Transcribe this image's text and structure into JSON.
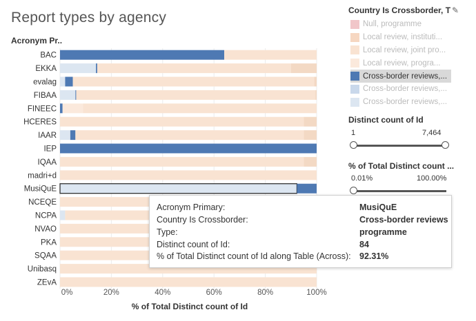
{
  "title": "Report types by agency",
  "row_header": "Acronym Pr..",
  "colors": {
    "blue": "#4e79b3",
    "light_blue": "#dce6f1",
    "beige": "#f9e3d2",
    "beige_dark": "#f3d9c4",
    "pink": "#f1c6c9"
  },
  "legend": {
    "title": "Country Is Crossborder, T",
    "edit_icon": "pencil-icon",
    "items": [
      {
        "label": "Null, programme",
        "color": "#f1c6c9",
        "active": false
      },
      {
        "label": "Local review, instituti...",
        "color": "#f6d7c1",
        "active": false
      },
      {
        "label": "Local review, joint pro...",
        "color": "#f9e3d2",
        "active": false
      },
      {
        "label": "Local review, progra...",
        "color": "#fbe9dc",
        "active": false
      },
      {
        "label": "Cross-border reviews,...",
        "color": "#4e79b3",
        "active": true,
        "highlighted": true
      },
      {
        "label": "Cross-border reviews,...",
        "color": "#c9d8eb",
        "active": false
      },
      {
        "label": "Cross-border reviews,...",
        "color": "#dce6f1",
        "active": false
      }
    ]
  },
  "filters": {
    "distinct_count": {
      "title": "Distinct count of Id",
      "min": "1",
      "max": "7,464"
    },
    "percent_total": {
      "title": "% of Total Distinct count ...",
      "min": "0.01%",
      "max": "100.00%"
    }
  },
  "tooltip": {
    "rows": [
      {
        "label": "Acronym Primary:",
        "value": "MusiQuE"
      },
      {
        "label": "Country Is Crossborder:",
        "value": "Cross-border reviews"
      },
      {
        "label": "Type:",
        "value": "programme"
      },
      {
        "label": "Distinct count of Id:",
        "value": "84"
      },
      {
        "label": "% of Total Distinct count of Id along Table (Across):",
        "value": "92.31%"
      }
    ]
  },
  "chart_data": {
    "type": "bar",
    "orientation": "horizontal",
    "stacked": true,
    "title": "Report types by agency",
    "xlabel": "% of Total Distinct count of Id",
    "ylabel": "Acronym Pr..",
    "xlim": [
      0,
      100
    ],
    "xticks": [
      "0%",
      "20%",
      "40%",
      "60%",
      "80%",
      "100%"
    ],
    "categories": [
      "BAC",
      "EKKA",
      "evalag",
      "FIBAA",
      "FINEEC",
      "HCERES",
      "IAAR",
      "IEP",
      "IQAA",
      "madri+d",
      "MusiQuE",
      "NCEQE",
      "NCPA",
      "NVAO",
      "PKA",
      "SQAA",
      "Unibasq",
      "ZEvA"
    ],
    "series": [
      {
        "name": "Cross-border reviews, programme",
        "color": "#dce6f1",
        "values": [
          0,
          14,
          2,
          6,
          0,
          0,
          4,
          0,
          0,
          0,
          92.31,
          0,
          2,
          0,
          0,
          0,
          0,
          0
        ]
      },
      {
        "name": "Cross-border reviews, institutional",
        "color": "#4e79b3",
        "values": [
          64,
          0.5,
          3,
          0.3,
          1,
          0,
          2,
          100,
          0,
          0,
          7.69,
          0,
          0,
          0,
          0,
          0,
          0,
          0
        ]
      },
      {
        "name": "Local review, programme",
        "color": "#fbe9dc",
        "values": [
          0,
          0,
          0,
          0,
          8,
          0,
          0,
          0,
          0,
          0,
          0,
          0,
          0,
          0,
          0,
          0,
          0,
          0
        ]
      },
      {
        "name": "Local review, joint programme",
        "color": "#f9e3d2",
        "values": [
          36,
          75.5,
          94,
          93.2,
          91,
          95,
          89,
          0,
          95,
          100,
          0,
          100,
          98,
          100,
          100,
          100,
          100,
          100
        ]
      },
      {
        "name": "Local review, institutional",
        "color": "#f3d9c4",
        "values": [
          0,
          10,
          1,
          0.5,
          0,
          5,
          5,
          0,
          5,
          0,
          0,
          0,
          0,
          0,
          0,
          0,
          0,
          0
        ]
      }
    ],
    "selected": {
      "category": "MusiQuE",
      "series": "Cross-border reviews, programme"
    }
  }
}
